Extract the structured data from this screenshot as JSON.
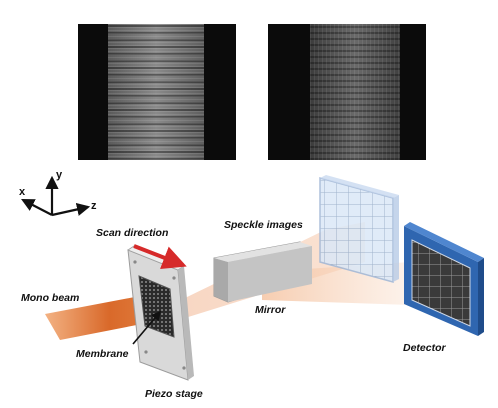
{
  "speckle_images": [
    {
      "name": "left-speckle-image"
    },
    {
      "name": "right-speckle-image"
    }
  ],
  "axes": {
    "x": "x",
    "y": "y",
    "z": "z"
  },
  "labels": {
    "scan_direction": "Scan direction",
    "speckle_images": "Speckle images",
    "mono_beam": "Mono beam",
    "mirror": "Mirror",
    "membrane": "Membrane",
    "detector": "Detector",
    "piezo_stage": "Piezo stage"
  },
  "colors": {
    "beam": "#e8955a",
    "scan_arrow": "#d62a2a",
    "detector_frame": "#2f66b0",
    "mirror": "#bdbdbd",
    "axes": "#111111"
  }
}
